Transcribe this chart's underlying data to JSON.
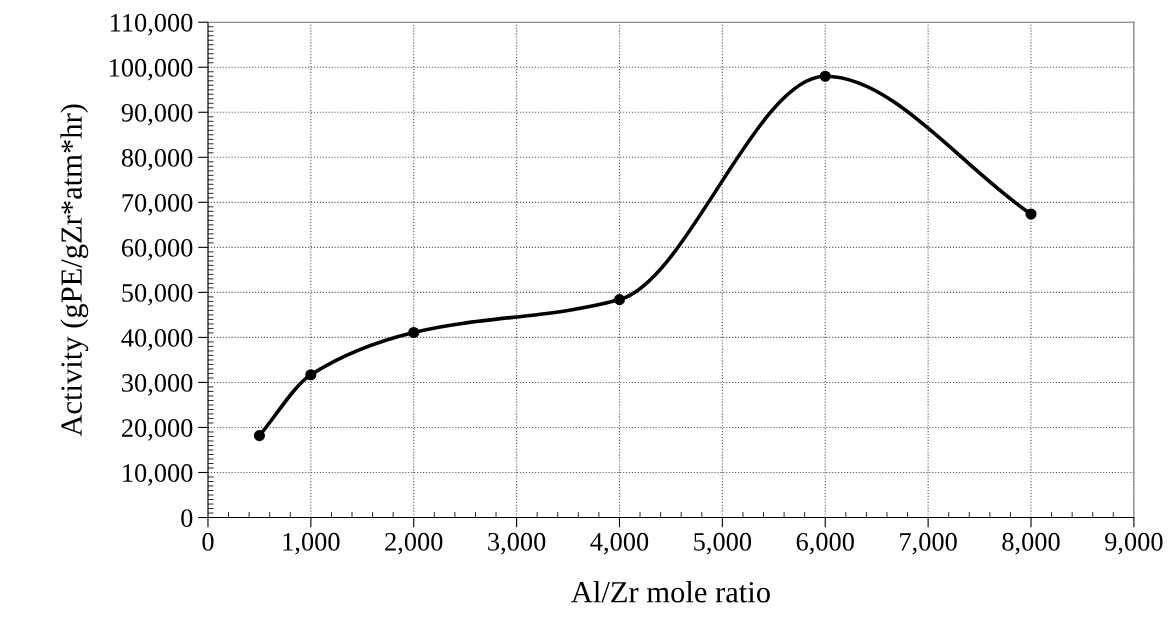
{
  "chart_data": {
    "type": "line",
    "xlabel": "Al/Zr mole ratio",
    "ylabel": "Activity (gPE/gZr*atm*hr)",
    "x": [
      500,
      1000,
      2000,
      4000,
      6000,
      8000
    ],
    "series": [
      {
        "color": "#000000",
        "values": [
          18200,
          31700,
          41100,
          48400,
          98000,
          67400
        ]
      }
    ],
    "marker": "circle",
    "line_style": "solid",
    "grid": true,
    "xlim": [
      0,
      9000
    ],
    "xticks": [
      {
        "value": 0,
        "label": "0"
      },
      {
        "value": 1000,
        "label": "1,000"
      },
      {
        "value": 2000,
        "label": "2,000"
      },
      {
        "value": 3000,
        "label": "3,000"
      },
      {
        "value": 4000,
        "label": "4,000"
      },
      {
        "value": 5000,
        "label": "5,000"
      },
      {
        "value": 6000,
        "label": "6,000"
      },
      {
        "value": 7000,
        "label": "7,000"
      },
      {
        "value": 8000,
        "label": "8,000"
      },
      {
        "value": 9000,
        "label": "9,000"
      }
    ],
    "ylim": [
      0,
      110000
    ],
    "yticks": [
      {
        "value": 0,
        "label": "0"
      },
      {
        "value": 10000,
        "label": "10,000"
      },
      {
        "value": 20000,
        "label": "20,000"
      },
      {
        "value": 30000,
        "label": "30,000"
      },
      {
        "value": 40000,
        "label": "40,000"
      },
      {
        "value": 50000,
        "label": "50,000"
      },
      {
        "value": 60000,
        "label": "60,000"
      },
      {
        "value": 70000,
        "label": "70,000"
      },
      {
        "value": 80000,
        "label": "80,000"
      },
      {
        "value": 90000,
        "label": "90,000"
      },
      {
        "value": 100000,
        "label": "100,000"
      },
      {
        "value": 110000,
        "label": "110,000"
      }
    ]
  }
}
